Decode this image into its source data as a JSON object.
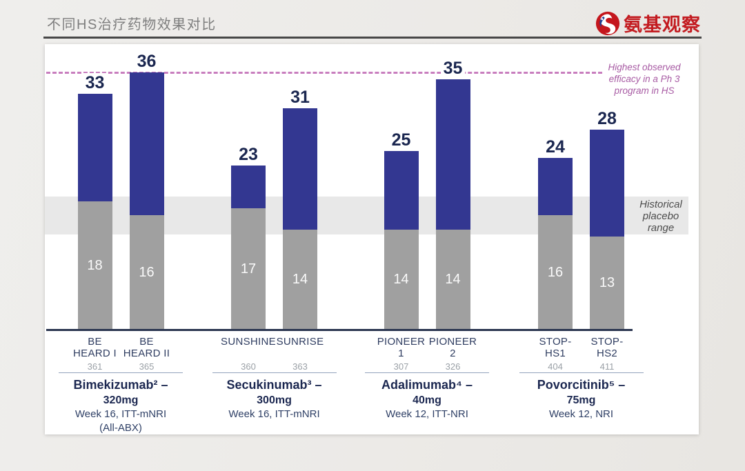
{
  "header": {
    "title": "不同HS治疗药物效果对比",
    "logo_text": "氨基观察"
  },
  "chart_data": {
    "type": "bar",
    "stacked": true,
    "ylim": [
      0,
      38
    ],
    "gridlines": false,
    "reference_line": {
      "value": 36,
      "label": "Highest observed\nefficacy in a Ph 3\nprogram in HS",
      "style": "dashed",
      "color": "#c87dbe"
    },
    "placebo_band": {
      "min": 13.3,
      "max": 18.6,
      "label": "Historical\nplacebo\nrange",
      "color": "#e8e8e8"
    },
    "groups": [
      {
        "drug": "Bimekizumab² –",
        "dose": "320mg",
        "protocol": "Week 16, ITT-mNRI",
        "note": "(All-ABX)",
        "trials": [
          {
            "name": "BE\nHEARD I",
            "n": "361",
            "placebo": 18,
            "total": 33
          },
          {
            "name": "BE\nHEARD II",
            "n": "365",
            "placebo": 16,
            "total": 36
          }
        ]
      },
      {
        "drug": "Secukinumab³ –",
        "dose": "300mg",
        "protocol": "Week 16, ITT-mNRI",
        "note": "",
        "trials": [
          {
            "name": "SUNSHINE",
            "n": "360",
            "placebo": 17,
            "total": 23
          },
          {
            "name": "SUNRISE",
            "n": "363",
            "placebo": 14,
            "total": 31
          }
        ]
      },
      {
        "drug": "Adalimumab⁴ –",
        "dose": "40mg",
        "protocol": "Week 12, ITT-NRI",
        "note": "",
        "trials": [
          {
            "name": "PIONEER\n1",
            "n": "307",
            "placebo": 14,
            "total": 25
          },
          {
            "name": "PIONEER\n2",
            "n": "326",
            "placebo": 14,
            "total": 35
          }
        ]
      },
      {
        "drug": "Povorcitinib⁵ –",
        "dose": "75mg",
        "protocol": "Week 12, NRI",
        "note": "",
        "trials": [
          {
            "name": "STOP-\nHS1",
            "n": "404",
            "placebo": 16,
            "total": 24
          },
          {
            "name": "STOP-\nHS2",
            "n": "411",
            "placebo": 13,
            "total": 28
          }
        ]
      }
    ],
    "colors": {
      "bar_drug": "#333791",
      "bar_placebo": "#a0a0a0",
      "value_label": "#1b2750",
      "band": "#e8e8e8",
      "reference_line": "#c87dbe",
      "annotation_text": "#a75aa3",
      "logo_red": "#c31b20"
    }
  }
}
